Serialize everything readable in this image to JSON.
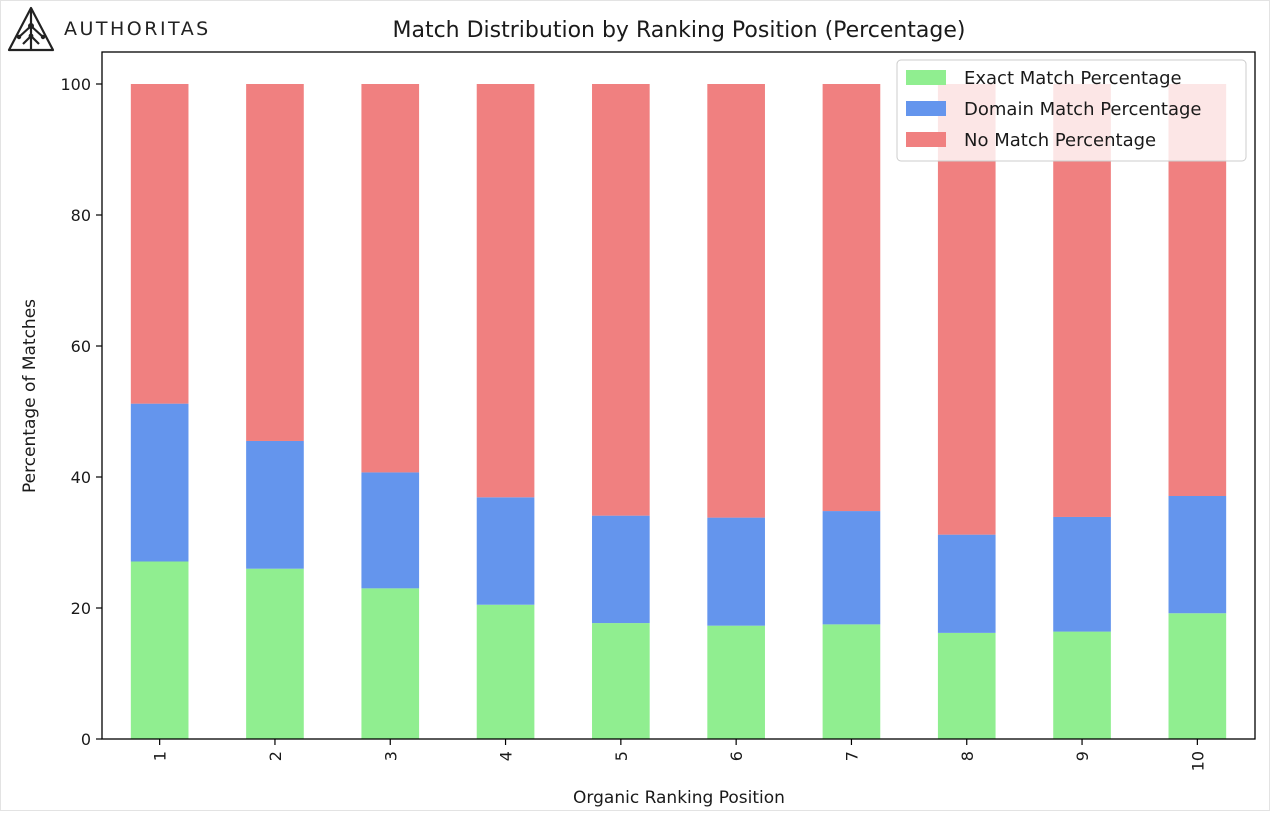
{
  "brand": {
    "logo_text": "AUTHORITAS"
  },
  "chart_data": {
    "type": "bar",
    "stacked": true,
    "title": "Match Distribution by Ranking Position (Percentage)",
    "xlabel": "Organic Ranking Position",
    "ylabel": "Percentage of Matches",
    "categories": [
      "1",
      "2",
      "3",
      "4",
      "5",
      "6",
      "7",
      "8",
      "9",
      "10"
    ],
    "ylim": [
      0,
      100
    ],
    "yticks": [
      0,
      20,
      40,
      60,
      80,
      100
    ],
    "series": [
      {
        "name": "Exact Match Percentage",
        "color": "#90EE90",
        "values": [
          27.1,
          26.0,
          23.0,
          20.5,
          17.7,
          17.3,
          17.5,
          16.2,
          16.4,
          19.2
        ]
      },
      {
        "name": "Domain Match Percentage",
        "color": "#6495ED",
        "values": [
          24.1,
          19.5,
          17.7,
          16.4,
          16.4,
          16.5,
          17.3,
          15.0,
          17.5,
          17.9
        ]
      },
      {
        "name": "No Match Percentage",
        "color": "#F08080",
        "values": [
          48.8,
          54.5,
          59.3,
          63.1,
          65.9,
          66.2,
          65.2,
          68.8,
          66.1,
          62.9
        ]
      }
    ],
    "legend_position": "top-right",
    "grid": false
  }
}
